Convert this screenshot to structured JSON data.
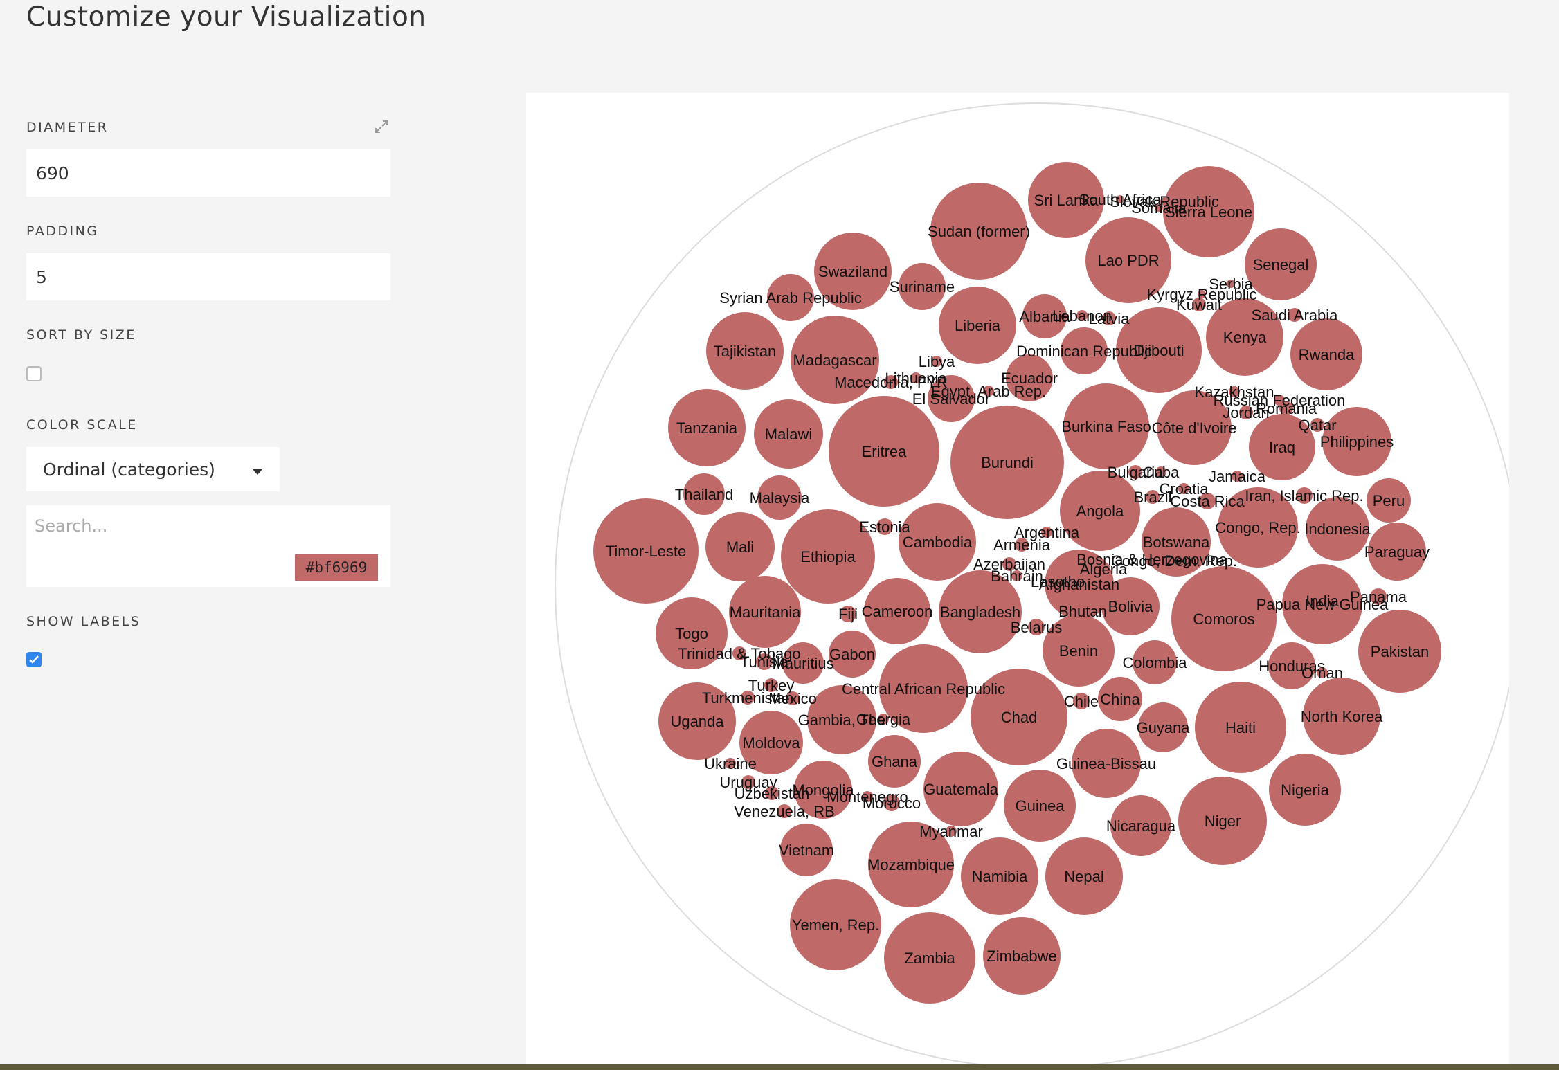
{
  "page": {
    "title": "Customize your Visualization"
  },
  "controls": {
    "diameter": {
      "label": "DIAMETER",
      "value": "690"
    },
    "padding": {
      "label": "PADDING",
      "value": "5"
    },
    "sort_by_size": {
      "label": "SORT BY SIZE",
      "checked": false
    },
    "color_scale": {
      "label": "COLOR SCALE",
      "selected": "Ordinal (categories)"
    },
    "search": {
      "placeholder": "Search...",
      "color_hex": "#bf6969"
    },
    "show_labels": {
      "label": "SHOW LABELS",
      "checked": true
    }
  },
  "colors": {
    "bubble": "#bf6969",
    "accent": "#2f86f0",
    "outline": "#dddddd"
  },
  "chart_data": {
    "type": "bubble",
    "labels": [
      "Sri Lanka",
      "South Africa",
      "Slovak Republic",
      "Somalia",
      "Sierra Leone",
      "Sudan (former)",
      "Lao PDR",
      "Senegal",
      "Swaziland",
      "Suriname",
      "Syrian Arab Republic",
      "Serbia",
      "Kyrgyz Republic",
      "Kuwait",
      "Saudi Arabia",
      "Liberia",
      "Albania",
      "Lebanon",
      "Latvia",
      "Tajikistan",
      "Madagascar",
      "Kenya",
      "Rwanda",
      "Djibouti",
      "Dominican Republic",
      "Libya",
      "Lithuania",
      "Macedonia, FYR",
      "Ecuador",
      "Egypt, Arab Rep.",
      "El Salvador",
      "Kazakhstan",
      "Russian Federation",
      "Jordan",
      "Romania",
      "Qatar",
      "Tanzania",
      "Malawi",
      "Eritrea",
      "Burundi",
      "Burkina Faso",
      "Côte d'Ivoire",
      "Iraq",
      "Philippines",
      "Bulgaria",
      "Cuba",
      "Jamaica",
      "Thailand",
      "Malaysia",
      "Brazil",
      "Croatia",
      "Costa Rica",
      "Iran, Islamic Rep.",
      "Peru",
      "Angola",
      "Estonia",
      "Argentina",
      "Timor-Leste",
      "Mali",
      "Ethiopia",
      "Cambodia",
      "Armenia",
      "Botswana",
      "Congo, Rep.",
      "Indonesia",
      "Bosnia & Herzegovina",
      "Algeria",
      "Congo, Dem. Rep.",
      "Paraguay",
      "Azerbaijan",
      "Bahrain",
      "Lesotho",
      "Afghanistan",
      "Papua New Guinea",
      "India",
      "Panama",
      "Togo",
      "Mauritania",
      "Fiji",
      "Cameroon",
      "Bangladesh",
      "Bhutan",
      "Bolivia",
      "Comoros",
      "Belarus",
      "Pakistan",
      "Trinidad & Tobago",
      "Tunisia",
      "Mauritius",
      "Gabon",
      "Benin",
      "Colombia",
      "Honduras",
      "Oman",
      "Turkey",
      "Central African Republic",
      "Turkmenistan",
      "Mexico",
      "Chile",
      "China",
      "Uganda",
      "Gambia, The",
      "Georgia",
      "Chad",
      "Haiti",
      "North Korea",
      "Guyana",
      "Moldova",
      "Ghana",
      "Ukraine",
      "Guinea-Bissau",
      "Uruguay",
      "Uzbekistan",
      "Mongolia",
      "Montenegro",
      "Guatemala",
      "Morocco",
      "Guinea",
      "Nigeria",
      "Venezuela, RB",
      "Nicaragua",
      "Niger",
      "Myanmar",
      "Vietnam",
      "Mozambique",
      "Namibia",
      "Nepal",
      "Yemen, Rep.",
      "Zambia",
      "Zimbabwe"
    ]
  }
}
